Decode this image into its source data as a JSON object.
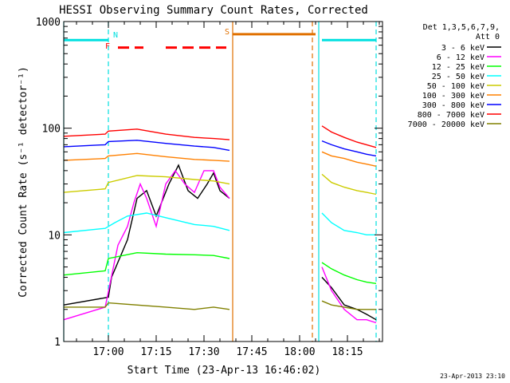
{
  "chart_data": {
    "type": "line",
    "title": "HESSI Observing Summary Count Rates, Corrected",
    "xlabel": "Start Time (23-Apr-13 16:46:02)",
    "ylabel": "Corrected Count Rate (s⁻¹ detector⁻¹)",
    "timestamp": "23-Apr-2013 23:10",
    "y_scale": "log",
    "ylim": [
      1,
      1000
    ],
    "xlim": [
      "16:46",
      "18:26"
    ],
    "x_ticks": [
      "17:00",
      "17:15",
      "17:30",
      "17:45",
      "18:00",
      "18:15"
    ],
    "y_ticks": [
      "1",
      "10",
      "100",
      "1000"
    ],
    "legend_header": [
      "Det 1,3,5,6,7,9,",
      "Att 0"
    ],
    "legend_position": "right",
    "series": [
      {
        "name": "3 - 6 keV",
        "color": "#000000",
        "segments": [
          [
            [
              "16:46",
              2.2
            ],
            [
              "17:00",
              2.6
            ],
            [
              "17:01",
              4
            ],
            [
              "17:06",
              9
            ],
            [
              "17:09",
              22
            ],
            [
              "17:12",
              26
            ],
            [
              "17:15",
              15
            ],
            [
              "17:19",
              30
            ],
            [
              "17:22",
              45
            ],
            [
              "17:25",
              26
            ],
            [
              "17:28",
              22
            ],
            [
              "17:31",
              30
            ],
            [
              "17:33",
              38
            ],
            [
              "17:35",
              26
            ],
            [
              "17:38",
              22
            ]
          ],
          [
            [
              "18:07",
              4
            ],
            [
              "18:10",
              3.2
            ],
            [
              "18:14",
              2.2
            ],
            [
              "18:18",
              2.0
            ],
            [
              "18:21",
              1.8
            ],
            [
              "18:24",
              1.6
            ]
          ]
        ]
      },
      {
        "name": "6 - 12 keV",
        "color": "#ff00ff",
        "segments": [
          [
            [
              "16:46",
              1.6
            ],
            [
              "16:59",
              2.1
            ],
            [
              "17:03",
              8
            ],
            [
              "17:06",
              12
            ],
            [
              "17:08",
              20
            ],
            [
              "17:10",
              30
            ],
            [
              "17:12",
              22
            ],
            [
              "17:15",
              12
            ],
            [
              "17:18",
              30
            ],
            [
              "17:21",
              40
            ],
            [
              "17:24",
              30
            ],
            [
              "17:27",
              25
            ],
            [
              "17:30",
              40
            ],
            [
              "17:33",
              40
            ],
            [
              "17:35",
              28
            ],
            [
              "17:38",
              22
            ]
          ],
          [
            [
              "18:07",
              5
            ],
            [
              "18:10",
              3
            ],
            [
              "18:14",
              2
            ],
            [
              "18:18",
              1.6
            ],
            [
              "18:21",
              1.6
            ],
            [
              "18:24",
              1.5
            ]
          ]
        ]
      },
      {
        "name": "12 - 25 keV",
        "color": "#00ff00",
        "segments": [
          [
            [
              "16:46",
              4.2
            ],
            [
              "16:59",
              4.6
            ],
            [
              "17:00",
              6
            ],
            [
              "17:09",
              6.8
            ],
            [
              "17:18",
              6.6
            ],
            [
              "17:27",
              6.5
            ],
            [
              "17:33",
              6.4
            ],
            [
              "17:38",
              6
            ]
          ],
          [
            [
              "18:07",
              5.5
            ],
            [
              "18:10",
              4.8
            ],
            [
              "18:14",
              4.2
            ],
            [
              "18:18",
              3.8
            ],
            [
              "18:21",
              3.6
            ],
            [
              "18:24",
              3.5
            ]
          ]
        ]
      },
      {
        "name": "25 - 50 keV",
        "color": "#00ffff",
        "segments": [
          [
            [
              "16:46",
              10.5
            ],
            [
              "16:59",
              11.5
            ],
            [
              "17:02",
              13
            ],
            [
              "17:06",
              15
            ],
            [
              "17:12",
              16
            ],
            [
              "17:18",
              14.5
            ],
            [
              "17:27",
              12.5
            ],
            [
              "17:33",
              12
            ],
            [
              "17:38",
              11
            ]
          ],
          [
            [
              "18:07",
              16
            ],
            [
              "18:10",
              13
            ],
            [
              "18:14",
              11
            ],
            [
              "18:18",
              10.5
            ],
            [
              "18:21",
              10
            ],
            [
              "18:24",
              10
            ]
          ]
        ]
      },
      {
        "name": "50 - 100 keV",
        "color": "#cccc00",
        "segments": [
          [
            [
              "16:46",
              25
            ],
            [
              "16:59",
              27
            ],
            [
              "17:00",
              31
            ],
            [
              "17:09",
              36
            ],
            [
              "17:18",
              35
            ],
            [
              "17:27",
              33
            ],
            [
              "17:33",
              32
            ],
            [
              "17:38",
              30
            ]
          ],
          [
            [
              "18:07",
              37
            ],
            [
              "18:10",
              31
            ],
            [
              "18:14",
              28
            ],
            [
              "18:18",
              26
            ],
            [
              "18:21",
              25
            ],
            [
              "18:24",
              24
            ]
          ]
        ]
      },
      {
        "name": "100 - 300 keV",
        "color": "#ff8000",
        "segments": [
          [
            [
              "16:46",
              50
            ],
            [
              "16:59",
              52
            ],
            [
              "17:00",
              55
            ],
            [
              "17:09",
              58
            ],
            [
              "17:18",
              54
            ],
            [
              "17:27",
              51
            ],
            [
              "17:33",
              50
            ],
            [
              "17:38",
              49
            ]
          ],
          [
            [
              "18:07",
              60
            ],
            [
              "18:10",
              55
            ],
            [
              "18:14",
              52
            ],
            [
              "18:18",
              48
            ],
            [
              "18:21",
              46
            ],
            [
              "18:24",
              44
            ]
          ]
        ]
      },
      {
        "name": "300 - 800 keV",
        "color": "#0000ff",
        "segments": [
          [
            [
              "16:46",
              67
            ],
            [
              "16:59",
              70
            ],
            [
              "17:00",
              75
            ],
            [
              "17:09",
              77
            ],
            [
              "17:18",
              72
            ],
            [
              "17:27",
              68
            ],
            [
              "17:33",
              66
            ],
            [
              "17:38",
              62
            ]
          ],
          [
            [
              "18:07",
              76
            ],
            [
              "18:10",
              70
            ],
            [
              "18:14",
              64
            ],
            [
              "18:18",
              60
            ],
            [
              "18:21",
              57
            ],
            [
              "18:24",
              55
            ]
          ]
        ]
      },
      {
        "name": "800 - 7000 keV",
        "color": "#ff0000",
        "segments": [
          [
            [
              "16:46",
              84
            ],
            [
              "16:59",
              88
            ],
            [
              "17:00",
              94
            ],
            [
              "17:09",
              98
            ],
            [
              "17:18",
              88
            ],
            [
              "17:27",
              82
            ],
            [
              "17:33",
              80
            ],
            [
              "17:38",
              78
            ]
          ],
          [
            [
              "18:07",
              105
            ],
            [
              "18:10",
              92
            ],
            [
              "18:14",
              82
            ],
            [
              "18:18",
              74
            ],
            [
              "18:21",
              70
            ],
            [
              "18:24",
              66
            ]
          ]
        ]
      },
      {
        "name": "7000 - 20000 keV",
        "color": "#808000",
        "segments": [
          [
            [
              "16:46",
              2.1
            ],
            [
              "16:59",
              2.1
            ],
            [
              "17:00",
              2.3
            ],
            [
              "17:18",
              2.1
            ],
            [
              "17:27",
              2.0
            ],
            [
              "17:33",
              2.1
            ],
            [
              "17:38",
              2.0
            ]
          ],
          [
            [
              "18:07",
              2.4
            ],
            [
              "18:10",
              2.2
            ],
            [
              "18:14",
              2.1
            ],
            [
              "18:18",
              2.0
            ],
            [
              "18:21",
              2.0
            ],
            [
              "18:24",
              2.0
            ]
          ]
        ]
      }
    ],
    "flags": [
      {
        "letter": "N",
        "color": "#00e0e0",
        "x": "17:00"
      },
      {
        "letter": "F",
        "color": "#ff0000",
        "x": "17:00"
      },
      {
        "letter": "S",
        "color": "#e07000",
        "x": "17:39"
      }
    ],
    "flag_bars": [
      {
        "name": "N",
        "color": "#00e0e0",
        "y": 670,
        "ranges": [
          [
            "16:46",
            "17:00"
          ],
          [
            "18:07",
            "18:24"
          ]
        ],
        "dashed": false
      },
      {
        "name": "F",
        "color": "#ff0000",
        "y": 570,
        "ranges": [
          [
            "17:03",
            "17:11"
          ],
          [
            "17:18",
            "17:37"
          ]
        ],
        "dashed": true
      },
      {
        "name": "S",
        "color": "#e07000",
        "y": 760,
        "ranges": [
          [
            "17:39",
            "18:05"
          ]
        ],
        "dashed": false
      }
    ],
    "vlines": [
      {
        "x": "16:46",
        "color": "#00e0e0",
        "dashed": false
      },
      {
        "x": "17:00",
        "color": "#00e0e0",
        "dashed": true
      },
      {
        "x": "17:39",
        "color": "#e07000",
        "dashed": false
      },
      {
        "x": "18:04",
        "color": "#e07000",
        "dashed": true
      },
      {
        "x": "18:06",
        "color": "#00e0e0",
        "dashed": false
      },
      {
        "x": "18:24",
        "color": "#00e0e0",
        "dashed": true
      }
    ]
  }
}
